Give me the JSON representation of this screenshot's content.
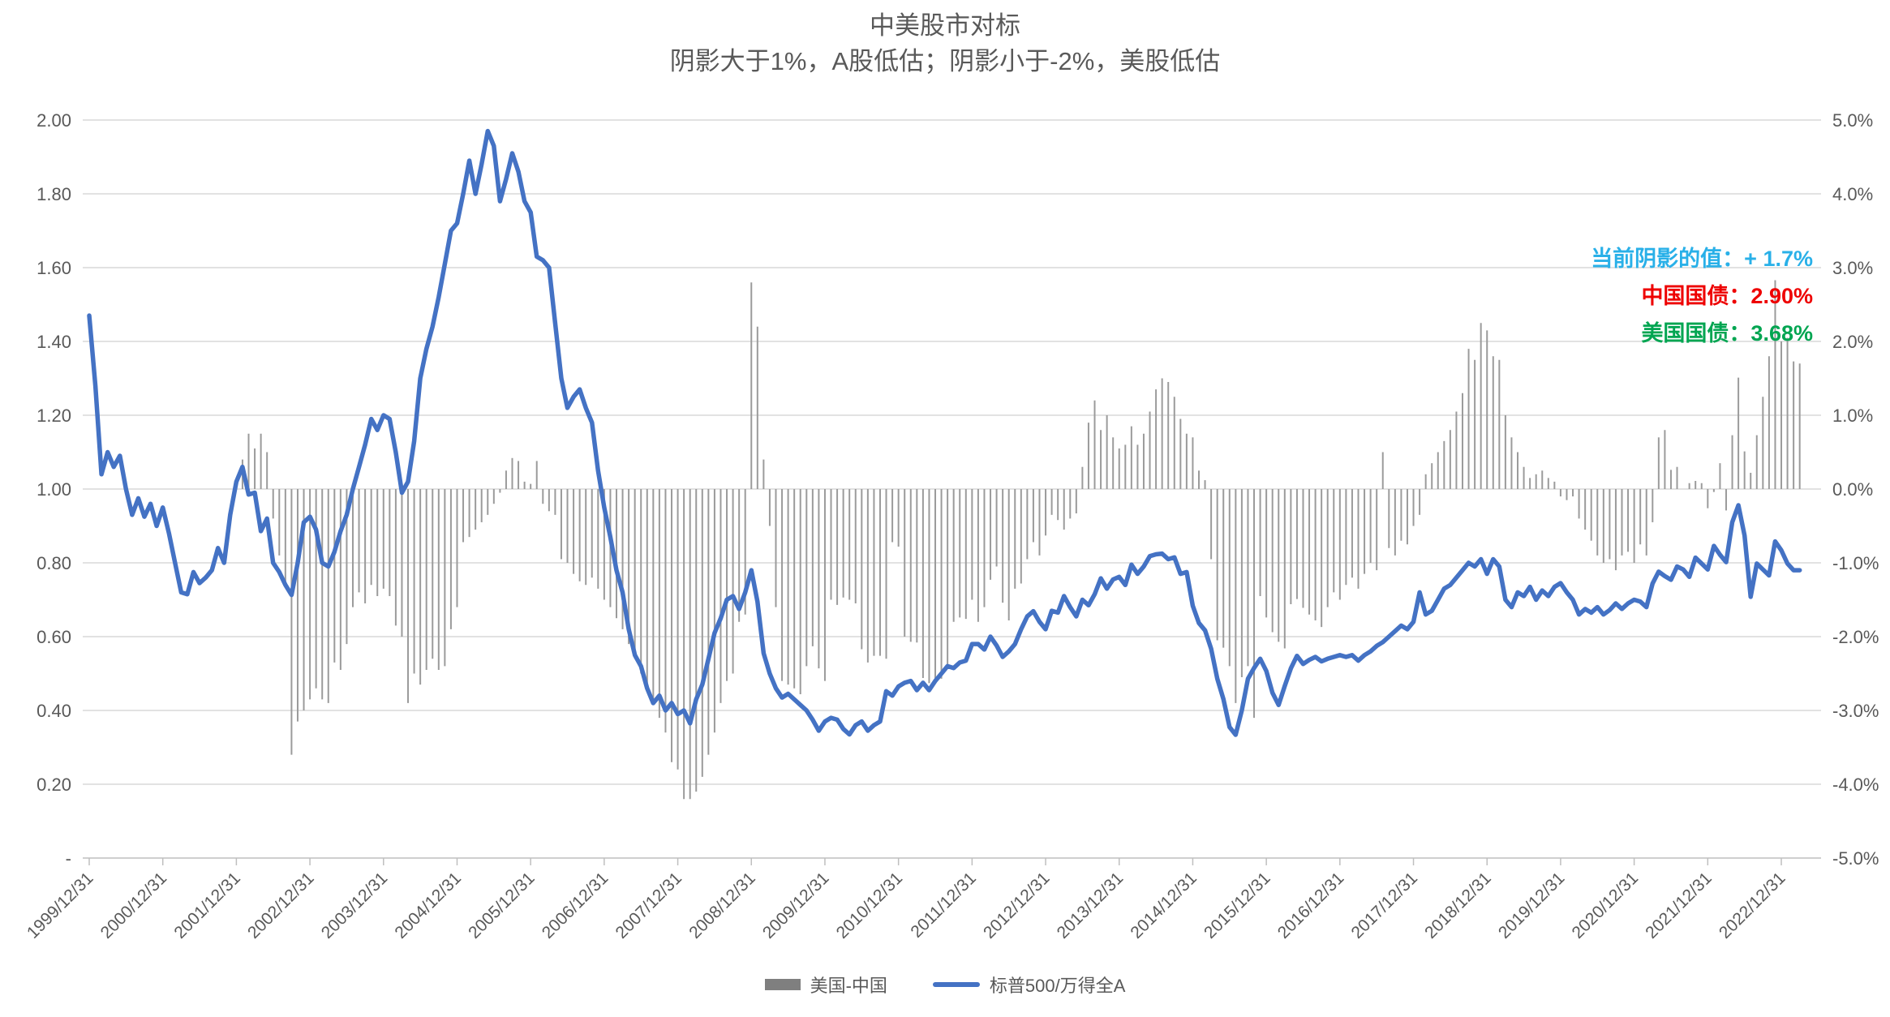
{
  "title": "中美股市对标",
  "subtitle": "阴影大于1%，A股低估；阴影小于-2%，美股低估",
  "annotations": {
    "current_shadow": "当前阴影的值：+ 1.7%",
    "china_bond": "中国国债：2.90%",
    "us_bond": "美国国债：3.68%"
  },
  "legend": {
    "bar_label": "美国-中国",
    "line_label": "标普500/万得全A"
  },
  "colors": {
    "line": "#4472c4",
    "bar": "#9b9b9b",
    "grid": "#d9d9d9",
    "axis": "#bfbfbf",
    "text": "#595959",
    "anno_shadow": "#29b0e8",
    "anno_cn": "#ee0000",
    "anno_us": "#00a551"
  },
  "chart_data": {
    "type": "combo",
    "title": "中美股市对标",
    "subtitle": "阴影大于1%，A股低估；阴影小于-2%，美股低估",
    "x_ticks": [
      "1999/12/31",
      "2000/12/31",
      "2001/12/31",
      "2002/12/31",
      "2003/12/31",
      "2004/12/31",
      "2005/12/31",
      "2006/12/31",
      "2007/12/31",
      "2008/12/31",
      "2009/12/31",
      "2010/12/31",
      "2011/12/31",
      "2012/12/31",
      "2013/12/31",
      "2014/12/31",
      "2015/12/31",
      "2016/12/31",
      "2017/12/31",
      "2018/12/31",
      "2019/12/31",
      "2020/12/31",
      "2021/12/31",
      "2022/12/31"
    ],
    "y_left": {
      "min": 0,
      "max": 2,
      "step": 0.2,
      "labels": [
        "2.00",
        "1.80",
        "1.60",
        "1.40",
        "1.20",
        "1.00",
        "0.80",
        "0.60",
        "0.40",
        "0.20",
        "-"
      ]
    },
    "y_right": {
      "min": -5,
      "max": 5,
      "step": 1,
      "labels": [
        "5.0%",
        "4.0%",
        "3.0%",
        "2.0%",
        "1.0%",
        "0.0%",
        "-1.0%",
        "-2.0%",
        "-3.0%",
        "-4.0%",
        "-5.0%"
      ]
    },
    "grid": true,
    "legend_position": "bottom",
    "series": [
      {
        "name": "美国-中国",
        "type": "bar",
        "axis": "right",
        "unit": "%",
        "start_month": "2002-01",
        "values": [
          0.4,
          0.75,
          0.55,
          0.75,
          0.5,
          -0.4,
          -0.9,
          -1.3,
          -3.6,
          -3.15,
          -3.0,
          -2.85,
          -2.7,
          -2.85,
          -2.9,
          -2.35,
          -2.45,
          -2.1,
          -1.6,
          -1.4,
          -1.55,
          -1.3,
          -1.45,
          -1.35,
          -1.45,
          -1.85,
          -2.0,
          -2.9,
          -2.5,
          -2.65,
          -2.45,
          -2.3,
          -2.45,
          -2.4,
          -1.9,
          -1.6,
          -0.72,
          -0.65,
          -0.55,
          -0.45,
          -0.35,
          -0.2,
          -0.05,
          0.25,
          0.42,
          0.38,
          0.1,
          0.07,
          0.38,
          -0.2,
          -0.3,
          -0.35,
          -0.95,
          -1.0,
          -1.15,
          -1.25,
          -1.3,
          -1.2,
          -1.35,
          -1.5,
          -1.6,
          -1.75,
          -1.9,
          -2.1,
          -2.3,
          -2.5,
          -2.7,
          -2.9,
          -3.1,
          -3.3,
          -3.7,
          -3.8,
          -4.2,
          -4.2,
          -4.1,
          -3.9,
          -3.6,
          -3.3,
          -2.9,
          -2.6,
          -2.5,
          -1.8,
          -1.7,
          2.8,
          2.2,
          0.4,
          -0.5,
          -1.6,
          -2.6,
          -2.65,
          -2.7,
          -2.78,
          -2.4,
          -2.13,
          -2.43,
          -2.6,
          -1.5,
          -1.57,
          -1.47,
          -1.5,
          -1.55,
          -2.17,
          -2.35,
          -2.26,
          -2.26,
          -2.3,
          -0.72,
          -0.78,
          -2.0,
          -2.07,
          -2.08,
          -2.56,
          -2.63,
          -2.6,
          -2.57,
          -2.41,
          -1.8,
          -1.74,
          -1.76,
          -1.5,
          -1.8,
          -1.6,
          -1.23,
          -1.05,
          -1.54,
          -1.78,
          -1.35,
          -1.28,
          -0.95,
          -0.72,
          -0.9,
          -0.63,
          -0.35,
          -0.42,
          -0.55,
          -0.4,
          -0.33,
          0.3,
          0.9,
          1.2,
          0.8,
          1.0,
          0.7,
          0.55,
          0.6,
          0.85,
          0.6,
          0.75,
          1.05,
          1.35,
          1.5,
          1.45,
          1.25,
          0.95,
          0.75,
          0.7,
          0.25,
          0.12,
          -0.95,
          -2.05,
          -2.15,
          -2.4,
          -2.9,
          -2.55,
          -2.4,
          -3.1,
          -1.45,
          -1.74,
          -1.94,
          -2.07,
          -2.16,
          -1.56,
          -1.49,
          -1.61,
          -1.7,
          -1.78,
          -1.87,
          -1.6,
          -1.4,
          -1.5,
          -1.3,
          -1.2,
          -1.35,
          -1.15,
          -1.0,
          -1.1,
          0.5,
          -0.8,
          -0.9,
          -0.7,
          -0.75,
          -0.5,
          -0.35,
          0.2,
          0.35,
          0.5,
          0.65,
          0.8,
          1.05,
          1.3,
          1.9,
          1.75,
          2.25,
          2.15,
          1.8,
          1.75,
          1.0,
          0.7,
          0.5,
          0.3,
          0.15,
          0.2,
          0.25,
          0.15,
          0.1,
          -0.1,
          -0.15,
          -0.1,
          -0.4,
          -0.55,
          -0.7,
          -0.9,
          -1.0,
          -0.95,
          -1.1,
          -0.9,
          -0.85,
          -1.0,
          -0.75,
          -0.9,
          -0.45,
          0.7,
          0.8,
          0.26,
          0.3,
          0,
          0.08,
          0.11,
          0.08,
          -0.26,
          -0.04,
          0.35,
          -0.29,
          0.73,
          1.51,
          0.51,
          0.22,
          0.73,
          1.25,
          1.8,
          2.83,
          2.0,
          2.05,
          1.73,
          1.7
        ]
      },
      {
        "name": "标普500/万得全A",
        "type": "line",
        "axis": "left",
        "start_month": "1999-12",
        "values": [
          1.47,
          1.28,
          1.04,
          1.1,
          1.06,
          1.09,
          1.0,
          0.93,
          0.975,
          0.925,
          0.96,
          0.9,
          0.95,
          0.88,
          0.8,
          0.72,
          0.715,
          0.775,
          0.745,
          0.76,
          0.78,
          0.84,
          0.8,
          0.93,
          1.02,
          1.06,
          0.985,
          0.99,
          0.886,
          0.92,
          0.8,
          0.775,
          0.74,
          0.713,
          0.8,
          0.91,
          0.925,
          0.89,
          0.8,
          0.79,
          0.83,
          0.886,
          0.93,
          1.0,
          1.06,
          1.12,
          1.19,
          1.16,
          1.2,
          1.19,
          1.1,
          0.99,
          1.02,
          1.13,
          1.3,
          1.38,
          1.44,
          1.52,
          1.61,
          1.7,
          1.72,
          1.8,
          1.89,
          1.8,
          1.88,
          1.97,
          1.93,
          1.78,
          1.84,
          1.91,
          1.86,
          1.78,
          1.75,
          1.63,
          1.62,
          1.6,
          1.45,
          1.3,
          1.22,
          1.25,
          1.27,
          1.22,
          1.18,
          1.05,
          0.95,
          0.87,
          0.78,
          0.72,
          0.62,
          0.55,
          0.52,
          0.46,
          0.42,
          0.44,
          0.4,
          0.42,
          0.39,
          0.4,
          0.365,
          0.43,
          0.47,
          0.54,
          0.61,
          0.65,
          0.7,
          0.71,
          0.675,
          0.72,
          0.78,
          0.695,
          0.555,
          0.5,
          0.46,
          0.435,
          0.445,
          0.43,
          0.415,
          0.4,
          0.375,
          0.345,
          0.37,
          0.38,
          0.375,
          0.35,
          0.335,
          0.36,
          0.37,
          0.345,
          0.36,
          0.37,
          0.452,
          0.44,
          0.465,
          0.475,
          0.48,
          0.455,
          0.475,
          0.455,
          0.48,
          0.5,
          0.52,
          0.515,
          0.53,
          0.535,
          0.58,
          0.58,
          0.565,
          0.6,
          0.576,
          0.545,
          0.56,
          0.58,
          0.62,
          0.655,
          0.669,
          0.64,
          0.62,
          0.67,
          0.665,
          0.71,
          0.68,
          0.655,
          0.7,
          0.685,
          0.715,
          0.758,
          0.73,
          0.755,
          0.762,
          0.74,
          0.795,
          0.77,
          0.79,
          0.818,
          0.823,
          0.825,
          0.81,
          0.815,
          0.77,
          0.775,
          0.684,
          0.637,
          0.617,
          0.567,
          0.486,
          0.431,
          0.355,
          0.334,
          0.4,
          0.486,
          0.515,
          0.54,
          0.507,
          0.448,
          0.415,
          0.466,
          0.514,
          0.548,
          0.526,
          0.537,
          0.545,
          0.533,
          0.54,
          0.545,
          0.55,
          0.545,
          0.55,
          0.535,
          0.55,
          0.56,
          0.575,
          0.585,
          0.6,
          0.615,
          0.63,
          0.62,
          0.64,
          0.72,
          0.66,
          0.67,
          0.7,
          0.73,
          0.74,
          0.76,
          0.78,
          0.8,
          0.79,
          0.81,
          0.77,
          0.81,
          0.79,
          0.7,
          0.68,
          0.72,
          0.71,
          0.735,
          0.7,
          0.725,
          0.71,
          0.735,
          0.745,
          0.72,
          0.7,
          0.66,
          0.675,
          0.665,
          0.68,
          0.66,
          0.672,
          0.69,
          0.675,
          0.69,
          0.7,
          0.695,
          0.68,
          0.744,
          0.776,
          0.764,
          0.754,
          0.79,
          0.782,
          0.762,
          0.814,
          0.798,
          0.782,
          0.846,
          0.822,
          0.802,
          0.91,
          0.956,
          0.874,
          0.708,
          0.798,
          0.782,
          0.766,
          0.858,
          0.834,
          0.798,
          0.78,
          0.78
        ]
      }
    ]
  }
}
